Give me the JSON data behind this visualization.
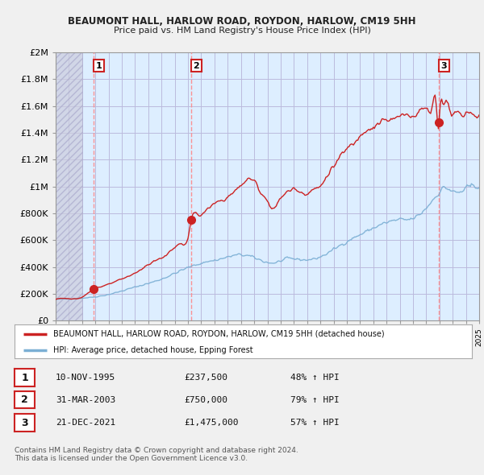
{
  "title": "BEAUMONT HALL, HARLOW ROAD, ROYDON, HARLOW, CM19 5HH",
  "subtitle": "Price paid vs. HM Land Registry's House Price Index (HPI)",
  "ylim": [
    0,
    2000000
  ],
  "yticks": [
    0,
    200000,
    400000,
    600000,
    800000,
    1000000,
    1200000,
    1400000,
    1600000,
    1800000,
    2000000
  ],
  "ytick_labels": [
    "£0",
    "£200K",
    "£400K",
    "£600K",
    "£800K",
    "£1M",
    "£1.2M",
    "£1.4M",
    "£1.6M",
    "£1.8M",
    "£2M"
  ],
  "sales": [
    {
      "year": 1995.86,
      "price": 237500,
      "label": "1"
    },
    {
      "year": 2003.25,
      "price": 750000,
      "label": "2"
    },
    {
      "year": 2021.97,
      "price": 1475000,
      "label": "3"
    }
  ],
  "hpi_color": "#7bafd4",
  "price_color": "#cc2222",
  "sale_vline_color": "#ff8888",
  "background_color": "#f0f0f0",
  "plot_bg_color": "#ddeeff",
  "grid_color": "#bbbbdd",
  "hatch_color": "#aaaacc",
  "hatch_bg_color": "#ccccdd",
  "legend_label_price": "BEAUMONT HALL, HARLOW ROAD, ROYDON, HARLOW, CM19 5HH (detached house)",
  "legend_label_hpi": "HPI: Average price, detached house, Epping Forest",
  "table_rows": [
    {
      "num": "1",
      "date": "10-NOV-1995",
      "price": "£237,500",
      "change": "48% ↑ HPI"
    },
    {
      "num": "2",
      "date": "31-MAR-2003",
      "price": "£750,000",
      "change": "79% ↑ HPI"
    },
    {
      "num": "3",
      "date": "21-DEC-2021",
      "price": "£1,475,000",
      "change": "57% ↑ HPI"
    }
  ],
  "footnote": "Contains HM Land Registry data © Crown copyright and database right 2024.\nThis data is licensed under the Open Government Licence v3.0.",
  "xlim": [
    1993,
    2025
  ],
  "xticks": [
    1993,
    1994,
    1995,
    1996,
    1997,
    1998,
    1999,
    2000,
    2001,
    2002,
    2003,
    2004,
    2005,
    2006,
    2007,
    2008,
    2009,
    2010,
    2011,
    2012,
    2013,
    2014,
    2015,
    2016,
    2017,
    2018,
    2019,
    2020,
    2021,
    2022,
    2023,
    2024,
    2025
  ]
}
